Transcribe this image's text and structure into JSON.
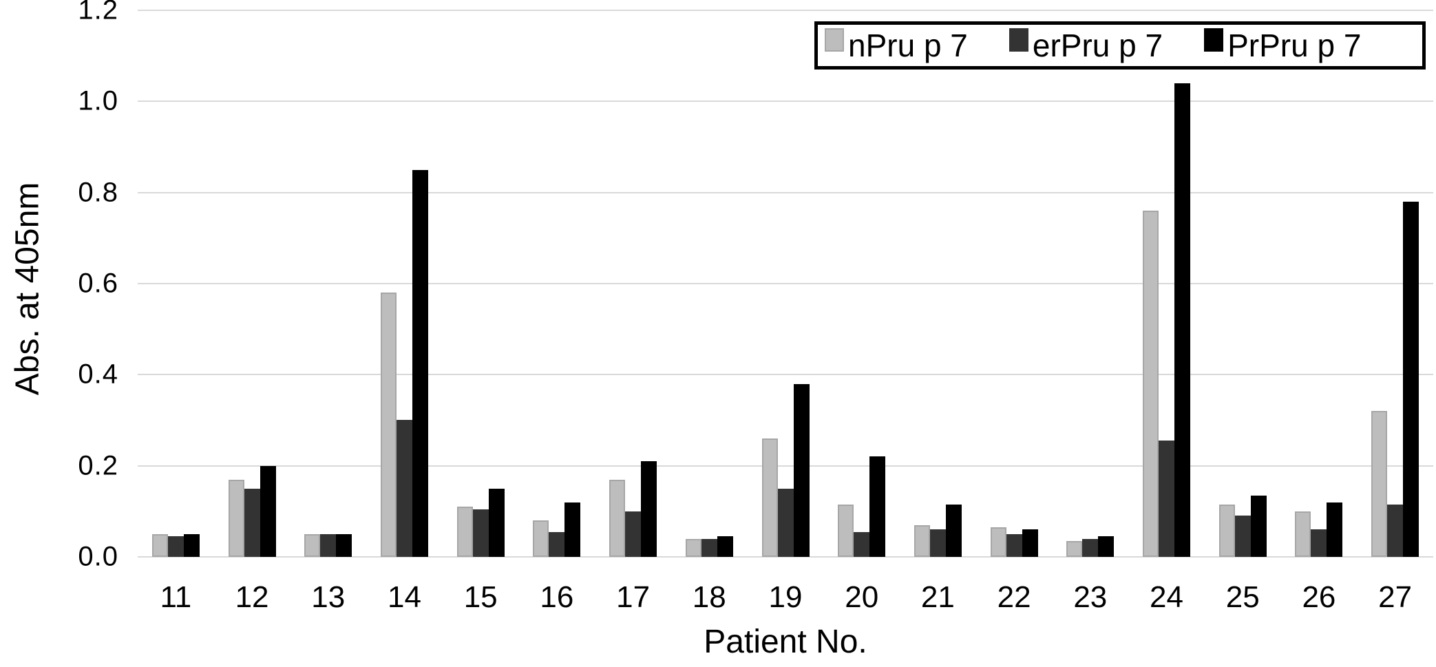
{
  "chart_data": {
    "type": "bar",
    "title": "",
    "xlabel": "Patient No.",
    "ylabel": "Abs. at 405nm",
    "categories": [
      "11",
      "12",
      "13",
      "14",
      "15",
      "16",
      "17",
      "18",
      "19",
      "20",
      "21",
      "22",
      "23",
      "24",
      "25",
      "26",
      "27"
    ],
    "series": [
      {
        "name": "nPru p 7",
        "color": "#bdbdbd",
        "edge": "#a6a6a6",
        "values": [
          0.05,
          0.17,
          0.05,
          0.58,
          0.11,
          0.08,
          0.17,
          0.04,
          0.26,
          0.115,
          0.07,
          0.065,
          0.035,
          0.76,
          0.115,
          0.1,
          0.32
        ]
      },
      {
        "name": "erPru p 7",
        "color": "#333333",
        "edge": "#333333",
        "values": [
          0.045,
          0.15,
          0.05,
          0.3,
          0.105,
          0.055,
          0.1,
          0.04,
          0.15,
          0.055,
          0.06,
          0.05,
          0.04,
          0.255,
          0.09,
          0.06,
          0.115
        ]
      },
      {
        "name": "PrPru p 7",
        "color": "#000000",
        "edge": "#000000",
        "values": [
          0.05,
          0.2,
          0.05,
          0.85,
          0.15,
          0.12,
          0.21,
          0.045,
          0.38,
          0.22,
          0.115,
          0.06,
          0.045,
          1.04,
          0.135,
          0.12,
          0.78
        ]
      }
    ],
    "ylim": [
      0,
      1.2
    ],
    "ytick_step": 0.2,
    "ytick_labels": [
      "0.0",
      "0.2",
      "0.4",
      "0.6",
      "0.8",
      "1.0",
      "1.2"
    ],
    "grid": true,
    "gridline_color": "#d9d9d9",
    "legend_position": "top-right",
    "background_color": "#ffffff",
    "text_color": "#000000"
  }
}
